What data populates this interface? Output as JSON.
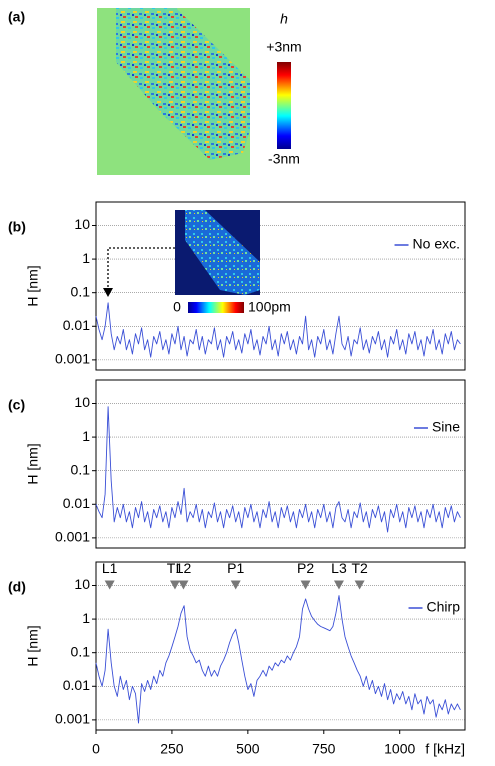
{
  "panel_a": {
    "label": "(a)",
    "colorbar_title": "h",
    "colorbar_max": "+3nm",
    "colorbar_min": "-3nm"
  },
  "chart_data": [
    {
      "type": "line",
      "label": "(b)",
      "ylabel": "H [nm]",
      "log_y": true,
      "grid": true,
      "inset_colorbar_min": "0",
      "inset_colorbar_max": "100pm",
      "xlim": [
        0,
        1215
      ],
      "ylim": [
        0.0005,
        50
      ],
      "yticks": [
        0.001,
        0.01,
        0.1,
        1,
        10
      ],
      "x": [
        0,
        10,
        20,
        30,
        40,
        50,
        60,
        70,
        80,
        90,
        100,
        110,
        120,
        130,
        140,
        150,
        160,
        170,
        180,
        190,
        200,
        210,
        220,
        230,
        240,
        250,
        260,
        270,
        280,
        290,
        300,
        310,
        320,
        330,
        340,
        350,
        360,
        370,
        380,
        390,
        400,
        410,
        420,
        430,
        440,
        450,
        460,
        470,
        480,
        490,
        500,
        510,
        520,
        530,
        540,
        550,
        560,
        570,
        580,
        590,
        600,
        610,
        620,
        630,
        640,
        650,
        660,
        670,
        680,
        690,
        700,
        710,
        720,
        730,
        740,
        750,
        760,
        770,
        780,
        790,
        800,
        810,
        820,
        830,
        840,
        850,
        860,
        870,
        880,
        890,
        900,
        910,
        920,
        930,
        940,
        950,
        960,
        970,
        980,
        990,
        1000,
        1010,
        1020,
        1030,
        1040,
        1050,
        1060,
        1070,
        1080,
        1090,
        1100,
        1110,
        1120,
        1130,
        1140,
        1150,
        1160,
        1170,
        1180,
        1190,
        1200
      ],
      "series": [
        {
          "name": "No exc.",
          "color": "#3a4fd6",
          "values": [
            0.02,
            0.008,
            0.004,
            0.01,
            0.05,
            0.006,
            0.002,
            0.005,
            0.003,
            0.008,
            0.002,
            0.004,
            0.0015,
            0.006,
            0.003,
            0.009,
            0.002,
            0.004,
            0.0012,
            0.005,
            0.003,
            0.007,
            0.002,
            0.004,
            0.0015,
            0.006,
            0.003,
            0.01,
            0.002,
            0.005,
            0.0013,
            0.004,
            0.003,
            0.008,
            0.002,
            0.005,
            0.0015,
            0.004,
            0.003,
            0.009,
            0.002,
            0.004,
            0.0012,
            0.005,
            0.003,
            0.007,
            0.002,
            0.004,
            0.0016,
            0.006,
            0.003,
            0.008,
            0.002,
            0.004,
            0.0014,
            0.005,
            0.003,
            0.01,
            0.002,
            0.004,
            0.0013,
            0.006,
            0.003,
            0.007,
            0.002,
            0.004,
            0.0015,
            0.005,
            0.003,
            0.02,
            0.002,
            0.004,
            0.0012,
            0.005,
            0.003,
            0.008,
            0.002,
            0.004,
            0.0015,
            0.006,
            0.02,
            0.003,
            0.002,
            0.005,
            0.0013,
            0.004,
            0.003,
            0.009,
            0.002,
            0.004,
            0.0016,
            0.005,
            0.003,
            0.007,
            0.002,
            0.004,
            0.0012,
            0.005,
            0.003,
            0.008,
            0.002,
            0.004,
            0.0015,
            0.006,
            0.003,
            0.007,
            0.002,
            0.004,
            0.0013,
            0.005,
            0.003,
            0.008,
            0.002,
            0.004,
            0.0015,
            0.006,
            0.003,
            0.007,
            0.002,
            0.004,
            0.003
          ]
        }
      ]
    },
    {
      "type": "line",
      "label": "(c)",
      "ylabel": "H [nm]",
      "log_y": true,
      "grid": true,
      "xlim": [
        0,
        1215
      ],
      "ylim": [
        0.0005,
        50
      ],
      "yticks": [
        0.001,
        0.01,
        0.1,
        1,
        10
      ],
      "x": [
        0,
        10,
        20,
        30,
        40,
        50,
        60,
        70,
        80,
        90,
        100,
        110,
        120,
        130,
        140,
        150,
        160,
        170,
        180,
        190,
        200,
        210,
        220,
        230,
        240,
        250,
        260,
        270,
        280,
        290,
        300,
        310,
        320,
        330,
        340,
        350,
        360,
        370,
        380,
        390,
        400,
        410,
        420,
        430,
        440,
        450,
        460,
        470,
        480,
        490,
        500,
        510,
        520,
        530,
        540,
        550,
        560,
        570,
        580,
        590,
        600,
        610,
        620,
        630,
        640,
        650,
        660,
        670,
        680,
        690,
        700,
        710,
        720,
        730,
        740,
        750,
        760,
        770,
        780,
        790,
        800,
        810,
        820,
        830,
        840,
        850,
        860,
        870,
        880,
        890,
        900,
        910,
        920,
        930,
        940,
        950,
        960,
        970,
        980,
        990,
        1000,
        1010,
        1020,
        1030,
        1040,
        1050,
        1060,
        1070,
        1080,
        1090,
        1100,
        1110,
        1120,
        1130,
        1140,
        1150,
        1160,
        1170,
        1180,
        1190,
        1200
      ],
      "series": [
        {
          "name": "Sine",
          "color": "#3a4fd6",
          "values": [
            0.01,
            0.006,
            0.004,
            0.02,
            8,
            0.05,
            0.003,
            0.008,
            0.004,
            0.01,
            0.003,
            0.006,
            0.002,
            0.008,
            0.004,
            0.012,
            0.003,
            0.006,
            0.002,
            0.007,
            0.004,
            0.009,
            0.003,
            0.006,
            0.002,
            0.008,
            0.004,
            0.012,
            0.005,
            0.03,
            0.003,
            0.006,
            0.004,
            0.01,
            0.003,
            0.007,
            0.002,
            0.006,
            0.004,
            0.011,
            0.003,
            0.006,
            0.002,
            0.007,
            0.004,
            0.009,
            0.003,
            0.006,
            0.002,
            0.008,
            0.004,
            0.01,
            0.003,
            0.006,
            0.002,
            0.007,
            0.004,
            0.012,
            0.003,
            0.006,
            0.002,
            0.008,
            0.004,
            0.009,
            0.003,
            0.006,
            0.002,
            0.007,
            0.004,
            0.01,
            0.003,
            0.006,
            0.002,
            0.007,
            0.004,
            0.01,
            0.003,
            0.006,
            0.002,
            0.008,
            0.012,
            0.004,
            0.003,
            0.007,
            0.002,
            0.006,
            0.004,
            0.011,
            0.003,
            0.006,
            0.002,
            0.007,
            0.004,
            0.009,
            0.003,
            0.006,
            0.0015,
            0.007,
            0.004,
            0.01,
            0.003,
            0.006,
            0.002,
            0.008,
            0.004,
            0.009,
            0.003,
            0.006,
            0.002,
            0.007,
            0.004,
            0.01,
            0.003,
            0.006,
            0.002,
            0.008,
            0.004,
            0.009,
            0.003,
            0.006,
            0.004
          ]
        }
      ]
    },
    {
      "type": "line",
      "label": "(d)",
      "ylabel": "H [nm]",
      "xlabel": "f [kHz]",
      "log_y": true,
      "grid": true,
      "xlim": [
        0,
        1215
      ],
      "ylim": [
        0.0005,
        50
      ],
      "yticks": [
        0.001,
        0.01,
        0.1,
        1,
        10
      ],
      "xticks": [
        0,
        250,
        500,
        750,
        1000
      ],
      "x": [
        0,
        10,
        20,
        30,
        40,
        50,
        60,
        70,
        80,
        90,
        100,
        110,
        120,
        130,
        140,
        150,
        160,
        170,
        180,
        190,
        200,
        210,
        220,
        230,
        240,
        250,
        260,
        270,
        280,
        290,
        300,
        310,
        320,
        330,
        340,
        350,
        360,
        370,
        380,
        390,
        400,
        410,
        420,
        430,
        440,
        450,
        460,
        470,
        480,
        490,
        500,
        510,
        520,
        530,
        540,
        550,
        560,
        570,
        580,
        590,
        600,
        610,
        620,
        630,
        640,
        650,
        660,
        670,
        680,
        690,
        700,
        710,
        720,
        730,
        740,
        750,
        760,
        770,
        780,
        790,
        800,
        810,
        820,
        830,
        840,
        850,
        860,
        870,
        880,
        890,
        900,
        910,
        920,
        930,
        940,
        950,
        960,
        970,
        980,
        990,
        1000,
        1010,
        1020,
        1030,
        1040,
        1050,
        1060,
        1070,
        1080,
        1090,
        1100,
        1110,
        1120,
        1130,
        1140,
        1150,
        1160,
        1170,
        1180,
        1190,
        1200
      ],
      "series": [
        {
          "name": "Chirp",
          "color": "#3a4fd6",
          "values": [
            0.05,
            0.02,
            0.01,
            0.03,
            0.5,
            0.05,
            0.01,
            0.005,
            0.02,
            0.008,
            0.015,
            0.004,
            0.01,
            0.006,
            0.0008,
            0.012,
            0.007,
            0.015,
            0.008,
            0.02,
            0.012,
            0.03,
            0.02,
            0.05,
            0.08,
            0.15,
            0.3,
            0.6,
            1.5,
            2.5,
            0.3,
            0.12,
            0.08,
            0.05,
            0.06,
            0.03,
            0.02,
            0.04,
            0.02,
            0.03,
            0.02,
            0.04,
            0.06,
            0.1,
            0.2,
            0.35,
            0.5,
            0.2,
            0.06,
            0.02,
            0.008,
            0.012,
            0.005,
            0.015,
            0.02,
            0.03,
            0.02,
            0.04,
            0.03,
            0.05,
            0.04,
            0.06,
            0.05,
            0.08,
            0.06,
            0.1,
            0.15,
            0.3,
            2,
            4,
            2,
            1.2,
            0.9,
            0.7,
            0.6,
            0.55,
            0.5,
            0.45,
            0.6,
            1.5,
            5,
            1,
            0.3,
            0.15,
            0.08,
            0.05,
            0.03,
            0.02,
            0.01,
            0.02,
            0.008,
            0.015,
            0.006,
            0.01,
            0.005,
            0.012,
            0.004,
            0.008,
            0.003,
            0.006,
            0.004,
            0.007,
            0.003,
            0.005,
            0.002,
            0.006,
            0.003,
            0.004,
            0.0015,
            0.005,
            0.003,
            0.004,
            0.0012,
            0.003,
            0.002,
            0.004,
            0.0015,
            0.003,
            0.002,
            0.003,
            0.002
          ]
        }
      ],
      "annotations": [
        {
          "label": "L1",
          "x": 45,
          "y": 10
        },
        {
          "label": "T1",
          "x": 260,
          "y": 10
        },
        {
          "label": "L2",
          "x": 288,
          "y": 10
        },
        {
          "label": "P1",
          "x": 460,
          "y": 10
        },
        {
          "label": "P2",
          "x": 690,
          "y": 10
        },
        {
          "label": "L3",
          "x": 800,
          "y": 10
        },
        {
          "label": "T2",
          "x": 868,
          "y": 10
        }
      ]
    }
  ]
}
